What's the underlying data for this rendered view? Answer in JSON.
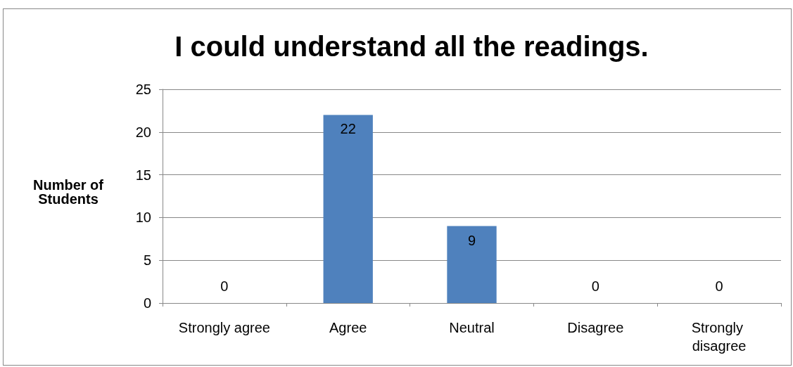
{
  "chart_data": {
    "type": "bar",
    "title": "I could understand all the readings.",
    "ylabel": "Number of Students",
    "categories": [
      "Strongly agree",
      "Agree",
      "Neutral",
      "Disagree",
      "Strongly disagree"
    ],
    "values": [
      0,
      22,
      9,
      0,
      0
    ],
    "color": "#4f81bd",
    "ylim": [
      0,
      25
    ],
    "yticks": [
      0,
      5,
      10,
      15,
      20,
      25
    ],
    "grid": "y",
    "data_labels": true
  }
}
